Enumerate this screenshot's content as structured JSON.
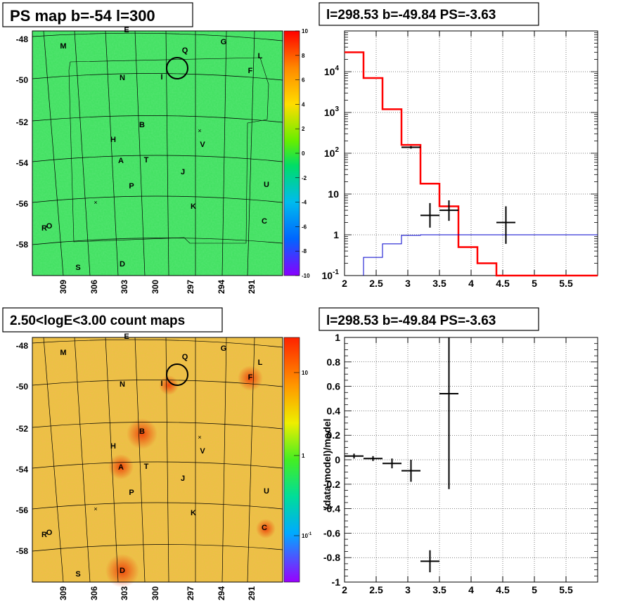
{
  "panels": {
    "top_left_title": "PS map b=-54 l=300",
    "top_right_title": "l=298.53 b=-49.84 PS=-3.63",
    "bottom_left_title": "2.50<logE<3.00 count maps",
    "bottom_right_title": "l=298.53 b=-49.84 PS=-3.63"
  },
  "maps": {
    "b_ticks": [
      "-48",
      "-50",
      "-52",
      "-54",
      "-56",
      "-58"
    ],
    "l_ticks": [
      "309",
      "306",
      "303",
      "300",
      "297",
      "294",
      "291"
    ],
    "source_labels": [
      "E",
      "M",
      "Q",
      "G",
      "L",
      "F",
      "N",
      "I",
      "B",
      "H",
      "V",
      "A",
      "T",
      "J",
      "P",
      "U",
      "K",
      "C",
      "R",
      "O",
      "S",
      "D"
    ],
    "ps_colorbar_ticks": [
      "10",
      "8",
      "6",
      "4",
      "2",
      "0",
      "-2",
      "-4",
      "-6",
      "-8",
      "-10"
    ],
    "count_colorbar_ticks": [
      "10",
      "1",
      "10^-1"
    ],
    "colors": {
      "ps_background": "#33e05a",
      "count_background": "#e6c840",
      "circle": "#000000"
    }
  },
  "chart_data": [
    {
      "type": "line",
      "name": "spectrum",
      "xlim": [
        2,
        6
      ],
      "ylim": [
        0.1,
        100000
      ],
      "yscale": "log",
      "grid": true,
      "x_ticks": [
        "2",
        "2.5",
        "3",
        "3.5",
        "4",
        "4.5",
        "5",
        "5.5"
      ],
      "y_ticks": [
        "10^-1",
        "1",
        "10",
        "10^2",
        "10^3",
        "10^4"
      ],
      "series": [
        {
          "color": "#ff0000",
          "steps": [
            [
              2.0,
              30000
            ],
            [
              2.3,
              7000
            ],
            [
              2.6,
              1200
            ],
            [
              2.9,
              160
            ],
            [
              3.2,
              18
            ],
            [
              3.5,
              5
            ],
            [
              3.8,
              0.5
            ],
            [
              4.1,
              0.2
            ],
            [
              4.4,
              0.1
            ],
            [
              6.0,
              0.1
            ]
          ]
        },
        {
          "color": "#0000cc",
          "steps": [
            [
              2.3,
              0.28
            ],
            [
              2.6,
              0.6
            ],
            [
              2.9,
              0.97
            ],
            [
              3.2,
              1.0
            ],
            [
              6.0,
              1.0
            ]
          ]
        }
      ],
      "points": [
        {
          "x": 3.05,
          "y": 140,
          "xerr": 0.15,
          "ylo": 130,
          "yhi": 150
        },
        {
          "x": 3.35,
          "y": 3,
          "xerr": 0.15,
          "ylo": 1.5,
          "yhi": 6
        },
        {
          "x": 3.65,
          "y": 4,
          "xerr": 0.15,
          "ylo": 2.2,
          "yhi": 7
        },
        {
          "x": 4.55,
          "y": 2,
          "xerr": 0.15,
          "ylo": 0.6,
          "yhi": 5
        }
      ]
    },
    {
      "type": "scatter",
      "name": "residuals",
      "xlim": [
        2,
        6
      ],
      "ylim": [
        -1,
        1
      ],
      "ylabel": "(data-model)/model",
      "grid": true,
      "x_ticks": [
        "2",
        "2.5",
        "3",
        "3.5",
        "4",
        "4.5",
        "5",
        "5.5"
      ],
      "y_ticks": [
        "-1",
        "-0.8",
        "-0.6",
        "-0.4",
        "-0.2",
        "0",
        "0.2",
        "0.4",
        "0.6",
        "0.8",
        "1"
      ],
      "points": [
        {
          "x": 2.15,
          "y": 0.03,
          "xerr": 0.15,
          "ylo": 0.01,
          "yhi": 0.05
        },
        {
          "x": 2.45,
          "y": 0.01,
          "xerr": 0.15,
          "ylo": -0.01,
          "yhi": 0.03
        },
        {
          "x": 2.75,
          "y": -0.03,
          "xerr": 0.15,
          "ylo": -0.07,
          "yhi": 0.01
        },
        {
          "x": 3.05,
          "y": -0.09,
          "xerr": 0.15,
          "ylo": -0.18,
          "yhi": 0.0
        },
        {
          "x": 3.35,
          "y": -0.83,
          "xerr": 0.15,
          "ylo": -0.92,
          "yhi": -0.74
        },
        {
          "x": 3.65,
          "y": 0.54,
          "xerr": 0.15,
          "ylo": -0.24,
          "yhi": 1.0
        }
      ]
    }
  ]
}
